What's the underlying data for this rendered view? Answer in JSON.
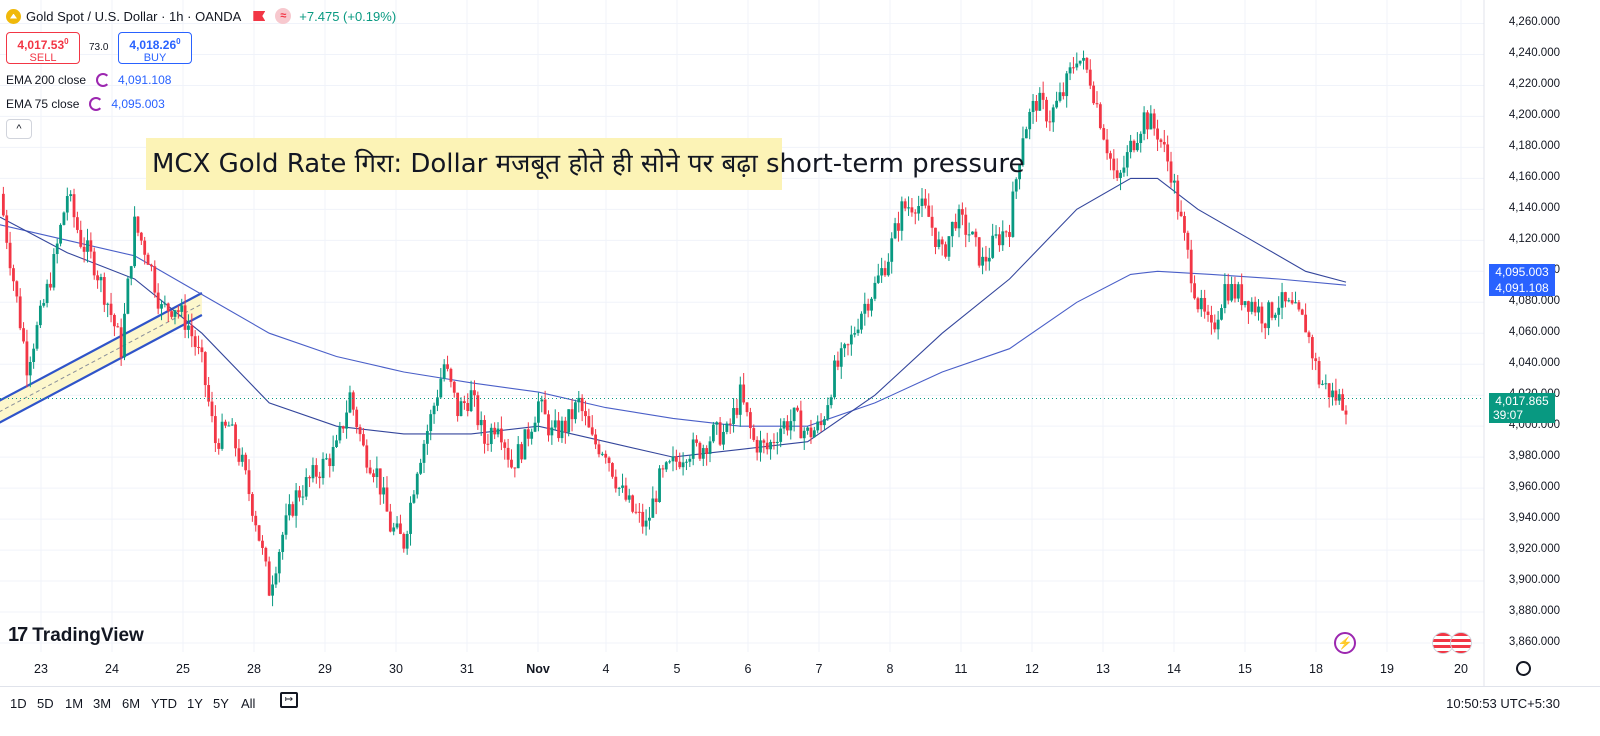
{
  "header": {
    "symbol": "Gold Spot / U.S. Dollar · 1h · OANDA",
    "change": "+7.475 (+0.19%)",
    "sell_price": "4,017.53",
    "sell_price_sup": "0",
    "sell_label": "SELL",
    "spread": "73.0",
    "buy_price": "4,018.26",
    "buy_price_sup": "0",
    "buy_label": "BUY",
    "ema200_label": "EMA 200 close",
    "ema200_value": "4,091.108",
    "ema75_label": "EMA 75 close",
    "ema75_value": "4,095.003",
    "collapse_icon": "^"
  },
  "headline": "MCX Gold Rate गिरा: Dollar मजबूत होते ही सोने पर बढ़ा short-term pressure",
  "price_tags": {
    "ema75": "4,095.003",
    "ema200": "4,091.108",
    "last": "4,017.865",
    "countdown": "39:07"
  },
  "colors": {
    "up": "#089981",
    "down": "#f23645",
    "ema": "#2962ff",
    "ema75_tag": "#2962ff",
    "ema200_tag": "#2962ff",
    "last_tag": "#089981",
    "highlight": "#fcf3b6"
  },
  "branding": {
    "logo_text": "TradingView",
    "logo_mark": "17"
  },
  "range_buttons": [
    "1D",
    "5D",
    "1M",
    "3M",
    "6M",
    "YTD",
    "1Y",
    "5Y",
    "All"
  ],
  "clock": "10:50:53 UTC+5:30",
  "icons": {
    "bolt": "lightning-icon",
    "settings": "gear-icon",
    "replay": "replay-icon",
    "flags": "us-flag-icon"
  },
  "chart_data": {
    "type": "candlestick",
    "ylim": [
      3860,
      4270
    ],
    "yticks": [
      "4,260.000",
      "4,240.000",
      "4,220.000",
      "4,200.000",
      "4,180.000",
      "4,160.000",
      "4,140.000",
      "4,120.000",
      "4,100.000",
      "4,080.000",
      "4,060.000",
      "4,040.000",
      "4,020.000",
      "4,000.000",
      "3,980.000",
      "3,960.000",
      "3,940.000",
      "3,920.000",
      "3,900.000",
      "3,880.000",
      "3,860.000"
    ],
    "xticks": [
      "23",
      "24",
      "25",
      "28",
      "29",
      "30",
      "31",
      "Nov",
      "4",
      "5",
      "6",
      "7",
      "8",
      "11",
      "12",
      "13",
      "14",
      "15",
      "18",
      "19",
      "20"
    ],
    "close_path": [
      [
        0,
        4150
      ],
      [
        2,
        4095
      ],
      [
        4,
        4040
      ],
      [
        6,
        4070
      ],
      [
        8,
        4105
      ],
      [
        10,
        4150
      ],
      [
        12,
        4120
      ],
      [
        14,
        4105
      ],
      [
        16,
        4080
      ],
      [
        18,
        4050
      ],
      [
        20,
        4130
      ],
      [
        22,
        4110
      ],
      [
        24,
        4075
      ],
      [
        26,
        4078
      ],
      [
        28,
        4065
      ],
      [
        30,
        4040
      ],
      [
        32,
        3990
      ],
      [
        34,
        4000
      ],
      [
        36,
        3975
      ],
      [
        38,
        3940
      ],
      [
        40,
        3895
      ],
      [
        42,
        3930
      ],
      [
        44,
        3955
      ],
      [
        46,
        3965
      ],
      [
        48,
        3975
      ],
      [
        50,
        3985
      ],
      [
        52,
        4020
      ],
      [
        54,
        3985
      ],
      [
        56,
        3970
      ],
      [
        58,
        3935
      ],
      [
        60,
        3925
      ],
      [
        62,
        3975
      ],
      [
        64,
        4005
      ],
      [
        66,
        4040
      ],
      [
        68,
        4010
      ],
      [
        70,
        4020
      ],
      [
        72,
        3990
      ],
      [
        74,
        4005
      ],
      [
        76,
        3975
      ],
      [
        78,
        3990
      ],
      [
        80,
        4015
      ],
      [
        82,
        3995
      ],
      [
        84,
        4000
      ],
      [
        86,
        4015
      ],
      [
        88,
        3990
      ],
      [
        90,
        3985
      ],
      [
        92,
        3960
      ],
      [
        94,
        3945
      ],
      [
        96,
        3935
      ],
      [
        98,
        3965
      ],
      [
        100,
        3975
      ],
      [
        102,
        3985
      ],
      [
        104,
        3985
      ],
      [
        106,
        3995
      ],
      [
        108,
        3995
      ],
      [
        110,
        4020
      ],
      [
        112,
        3990
      ],
      [
        114,
        3985
      ],
      [
        116,
        4000
      ],
      [
        118,
        4005
      ],
      [
        120,
        3995
      ],
      [
        122,
        4000
      ],
      [
        124,
        4035
      ],
      [
        126,
        4050
      ],
      [
        128,
        4075
      ],
      [
        130,
        4090
      ],
      [
        132,
        4110
      ],
      [
        134,
        4140
      ],
      [
        136,
        4145
      ],
      [
        138,
        4135
      ],
      [
        140,
        4110
      ],
      [
        142,
        4135
      ],
      [
        144,
        4125
      ],
      [
        146,
        4105
      ],
      [
        148,
        4120
      ],
      [
        150,
        4130
      ],
      [
        152,
        4190
      ],
      [
        154,
        4210
      ],
      [
        156,
        4200
      ],
      [
        158,
        4215
      ],
      [
        160,
        4240
      ],
      [
        162,
        4225
      ],
      [
        164,
        4190
      ],
      [
        166,
        4155
      ],
      [
        168,
        4180
      ],
      [
        170,
        4200
      ],
      [
        172,
        4190
      ],
      [
        174,
        4165
      ],
      [
        176,
        4120
      ],
      [
        178,
        4080
      ],
      [
        180,
        4060
      ],
      [
        182,
        4090
      ],
      [
        184,
        4085
      ],
      [
        186,
        4080
      ],
      [
        188,
        4070
      ],
      [
        190,
        4080
      ],
      [
        192,
        4075
      ],
      [
        194,
        4065
      ],
      [
        196,
        4030
      ],
      [
        198,
        4020
      ],
      [
        200,
        4015
      ]
    ],
    "ema75": [
      [
        0,
        4135
      ],
      [
        10,
        4112
      ],
      [
        20,
        4095
      ],
      [
        30,
        4060
      ],
      [
        40,
        4015
      ],
      [
        50,
        4000
      ],
      [
        60,
        3995
      ],
      [
        70,
        3995
      ],
      [
        80,
        4000
      ],
      [
        90,
        3990
      ],
      [
        100,
        3980
      ],
      [
        110,
        3985
      ],
      [
        120,
        3990
      ],
      [
        130,
        4020
      ],
      [
        140,
        4060
      ],
      [
        150,
        4095
      ],
      [
        160,
        4140
      ],
      [
        168,
        4160
      ],
      [
        172,
        4160
      ],
      [
        178,
        4140
      ],
      [
        186,
        4120
      ],
      [
        194,
        4100
      ],
      [
        200,
        4093
      ]
    ],
    "ema200": [
      [
        0,
        4130
      ],
      [
        10,
        4120
      ],
      [
        20,
        4110
      ],
      [
        30,
        4085
      ],
      [
        40,
        4060
      ],
      [
        50,
        4045
      ],
      [
        60,
        4035
      ],
      [
        70,
        4028
      ],
      [
        80,
        4022
      ],
      [
        90,
        4012
      ],
      [
        100,
        4005
      ],
      [
        110,
        4000
      ],
      [
        120,
        4000
      ],
      [
        130,
        4015
      ],
      [
        140,
        4035
      ],
      [
        150,
        4050
      ],
      [
        160,
        4080
      ],
      [
        168,
        4098
      ],
      [
        172,
        4100
      ],
      [
        180,
        4098
      ],
      [
        190,
        4095
      ],
      [
        200,
        4091
      ]
    ],
    "trendline": {
      "x0": -2,
      "y0": 4012,
      "x1": 30,
      "y1": 4086
    },
    "last_price": 4017.865,
    "grid": true
  }
}
